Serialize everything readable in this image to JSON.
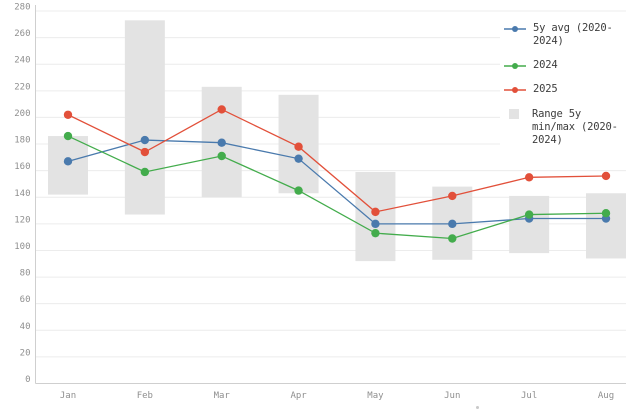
{
  "chart_data": {
    "type": "line",
    "title": "",
    "xlabel": "",
    "ylabel": "",
    "categories": [
      "Jan",
      "Feb",
      "Mar",
      "Apr",
      "May",
      "Jun",
      "Jul",
      "Aug"
    ],
    "series": [
      {
        "name": "5y avg (2020-2024)",
        "color": "#4a7aad",
        "values": [
          167,
          183,
          181,
          169,
          120,
          120,
          124,
          124
        ]
      },
      {
        "name": "2024",
        "color": "#43ac4c",
        "values": [
          186,
          159,
          171,
          145,
          113,
          109,
          127,
          128
        ]
      },
      {
        "name": "2025",
        "color": "#e2503a",
        "values": [
          202,
          174,
          206,
          178,
          129,
          141,
          155,
          156
        ]
      }
    ],
    "range": {
      "name": "Range 5y min/max (2020-2024)",
      "color": "#e3e3e3",
      "min": [
        142,
        127,
        140,
        143,
        92,
        93,
        98,
        94
      ],
      "max": [
        186,
        273,
        223,
        217,
        159,
        148,
        141,
        143
      ]
    },
    "ylim": [
      0,
      280
    ],
    "ytick_step": 20,
    "grid": true,
    "legend_position": "top-right"
  },
  "colors": {
    "grid": "#ececec",
    "axis": "#cfcfcf",
    "tick_text": "#8f8f8f",
    "legend_text": "#3d3d3d",
    "background": "#ffffff"
  }
}
